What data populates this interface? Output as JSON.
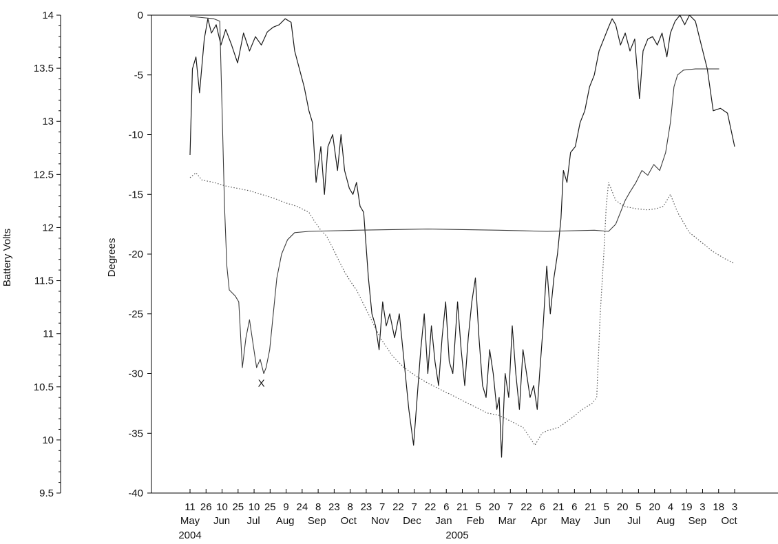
{
  "chart_data": {
    "type": "line",
    "xlabel": "",
    "ylabel": "Degrees",
    "ylim": [
      -40,
      0
    ],
    "y_ticks": [
      0,
      -5,
      -10,
      -15,
      -20,
      -25,
      -30,
      -35,
      -40
    ],
    "secondary_axis": {
      "ylabel": "Battery Volts",
      "ylim": [
        9.5,
        14
      ],
      "ticks": [
        "14",
        "13.5",
        "13",
        "12.5",
        "12",
        "11.5",
        "11",
        "10.5",
        "10",
        "9.5"
      ]
    },
    "x_days_labels": [
      "11",
      "26",
      "10",
      "25",
      "10",
      "25",
      "9",
      "24",
      "8",
      "23",
      "8",
      "23",
      "7",
      "22",
      "7",
      "22",
      "6",
      "21",
      "5",
      "20",
      "7",
      "22",
      "6",
      "21",
      "6",
      "21",
      "5",
      "20",
      "5",
      "20",
      "4",
      "19",
      "3",
      "18",
      "3"
    ],
    "x_month_labels": [
      "May",
      "Jun",
      "Jul",
      "Aug",
      "Sep",
      "Oct",
      "Nov",
      "Dec",
      "Jan",
      "Feb",
      "Mar",
      "Apr",
      "May",
      "Jun",
      "Jul",
      "Aug",
      "Sep",
      "Oct"
    ],
    "x_year_labels": [
      "2004",
      "2005"
    ],
    "annotation": "X",
    "grid": false,
    "series": [
      {
        "style": "solid-thick",
        "values": [
          [
            0,
            -11.7
          ],
          [
            2,
            -4.5
          ],
          [
            5,
            -3.5
          ],
          [
            8,
            -6.5
          ],
          [
            12,
            -2
          ],
          [
            15,
            -0.3
          ],
          [
            18,
            -1.5
          ],
          [
            22,
            -0.8
          ],
          [
            26,
            -2.5
          ],
          [
            30,
            -1.2
          ],
          [
            35,
            -2.5
          ],
          [
            40,
            -4
          ],
          [
            45,
            -1.5
          ],
          [
            50,
            -3
          ],
          [
            55,
            -1.8
          ],
          [
            60,
            -2.5
          ],
          [
            65,
            -1.4
          ],
          [
            70,
            -1
          ],
          [
            75,
            -0.8
          ],
          [
            80,
            -0.3
          ],
          [
            85,
            -0.6
          ],
          [
            88,
            -3
          ],
          [
            92,
            -4.5
          ],
          [
            96,
            -6
          ],
          [
            100,
            -8
          ],
          [
            103,
            -9
          ],
          [
            106,
            -14
          ],
          [
            110,
            -11
          ],
          [
            113,
            -15
          ],
          [
            116,
            -11
          ],
          [
            120,
            -10
          ],
          [
            124,
            -13
          ],
          [
            127,
            -10
          ],
          [
            130,
            -13
          ],
          [
            134,
            -14.5
          ],
          [
            137,
            -15
          ],
          [
            140,
            -14
          ],
          [
            143,
            -16
          ],
          [
            146,
            -16.5
          ],
          [
            150,
            -22
          ],
          [
            153,
            -25
          ],
          [
            156,
            -26
          ],
          [
            159,
            -28
          ],
          [
            162,
            -24
          ],
          [
            165,
            -26
          ],
          [
            168,
            -25
          ],
          [
            172,
            -27
          ],
          [
            176,
            -25
          ],
          [
            180,
            -29
          ],
          [
            184,
            -33
          ],
          [
            188,
            -36
          ],
          [
            191,
            -32
          ],
          [
            194,
            -28
          ],
          [
            197,
            -25
          ],
          [
            200,
            -30
          ],
          [
            203,
            -26
          ],
          [
            206,
            -29
          ],
          [
            209,
            -31
          ],
          [
            212,
            -27
          ],
          [
            215,
            -24
          ],
          [
            218,
            -29
          ],
          [
            221,
            -30
          ],
          [
            225,
            -24
          ],
          [
            228,
            -28
          ],
          [
            231,
            -31
          ],
          [
            234,
            -27
          ],
          [
            237,
            -24
          ],
          [
            240,
            -22
          ],
          [
            243,
            -27
          ],
          [
            246,
            -31
          ],
          [
            249,
            -32
          ],
          [
            252,
            -28
          ],
          [
            255,
            -30
          ],
          [
            258,
            -33
          ],
          [
            260,
            -32
          ],
          [
            262,
            -37
          ],
          [
            265,
            -30
          ],
          [
            268,
            -32
          ],
          [
            271,
            -26
          ],
          [
            274,
            -30
          ],
          [
            277,
            -33
          ],
          [
            280,
            -28
          ],
          [
            283,
            -30
          ],
          [
            286,
            -32
          ],
          [
            289,
            -31
          ],
          [
            292,
            -33
          ],
          [
            294,
            -30
          ],
          [
            297,
            -26
          ],
          [
            300,
            -21
          ],
          [
            303,
            -25
          ],
          [
            306,
            -22
          ],
          [
            309,
            -20
          ],
          [
            312,
            -17
          ],
          [
            314,
            -13
          ],
          [
            317,
            -14
          ],
          [
            320,
            -11.5
          ],
          [
            324,
            -11
          ],
          [
            328,
            -9
          ],
          [
            332,
            -8
          ],
          [
            336,
            -6
          ],
          [
            340,
            -5
          ],
          [
            344,
            -3
          ],
          [
            348,
            -2
          ],
          [
            352,
            -1
          ],
          [
            355,
            -0.3
          ],
          [
            358,
            -0.8
          ],
          [
            362,
            -2.5
          ],
          [
            366,
            -1.5
          ],
          [
            370,
            -3
          ],
          [
            374,
            -2
          ],
          [
            378,
            -7
          ],
          [
            381,
            -3
          ],
          [
            385,
            -2
          ],
          [
            389,
            -1.8
          ],
          [
            393,
            -2.5
          ],
          [
            397,
            -1.5
          ],
          [
            401,
            -3.5
          ],
          [
            404,
            -1.5
          ],
          [
            408,
            -0.5
          ],
          [
            412,
            0
          ],
          [
            416,
            -0.8
          ],
          [
            420,
            0
          ],
          [
            425,
            -0.5
          ],
          [
            430,
            -2.5
          ],
          [
            435,
            -4.5
          ],
          [
            440,
            -8
          ],
          [
            446,
            -7.8
          ],
          [
            452,
            -8.2
          ],
          [
            458,
            -11
          ]
        ]
      },
      {
        "style": "solid-thin",
        "values": [
          [
            0,
            -0.1
          ],
          [
            10,
            -0.2
          ],
          [
            20,
            -0.3
          ],
          [
            25,
            -0.5
          ],
          [
            27,
            -8
          ],
          [
            29,
            -16
          ],
          [
            31,
            -21
          ],
          [
            33,
            -23
          ],
          [
            38,
            -23.5
          ],
          [
            41,
            -24
          ],
          [
            44,
            -29.5
          ],
          [
            47,
            -27
          ],
          [
            50,
            -25.5
          ],
          [
            53,
            -27.5
          ],
          [
            56,
            -29.5
          ],
          [
            59,
            -28.8
          ],
          [
            62,
            -30
          ],
          [
            64,
            -29.5
          ],
          [
            67,
            -28
          ],
          [
            70,
            -25
          ],
          [
            73,
            -22
          ],
          [
            77,
            -20
          ],
          [
            82,
            -18.8
          ],
          [
            88,
            -18.2
          ],
          [
            100,
            -18.1
          ],
          [
            140,
            -18
          ],
          [
            200,
            -17.9
          ],
          [
            260,
            -18
          ],
          [
            300,
            -18.1
          ],
          [
            340,
            -18
          ],
          [
            352,
            -18.1
          ],
          [
            358,
            -17.5
          ],
          [
            362,
            -16.5
          ],
          [
            366,
            -15.5
          ],
          [
            370,
            -14.8
          ],
          [
            375,
            -14
          ],
          [
            380,
            -13
          ],
          [
            385,
            -13.4
          ],
          [
            390,
            -12.5
          ],
          [
            395,
            -13
          ],
          [
            400,
            -11.5
          ],
          [
            404,
            -9
          ],
          [
            407,
            -6
          ],
          [
            410,
            -5
          ],
          [
            415,
            -4.6
          ],
          [
            425,
            -4.5
          ],
          [
            445,
            -4.5
          ]
        ]
      },
      {
        "style": "dotted",
        "values": [
          [
            0,
            -13.6
          ],
          [
            5,
            -13.2
          ],
          [
            10,
            -13.8
          ],
          [
            20,
            -14
          ],
          [
            30,
            -14.3
          ],
          [
            40,
            -14.5
          ],
          [
            50,
            -14.7
          ],
          [
            60,
            -15
          ],
          [
            70,
            -15.3
          ],
          [
            80,
            -15.7
          ],
          [
            90,
            -16
          ],
          [
            100,
            -16.5
          ],
          [
            105,
            -17.3
          ],
          [
            110,
            -18
          ],
          [
            115,
            -18.5
          ],
          [
            120,
            -19.5
          ],
          [
            125,
            -20.5
          ],
          [
            130,
            -21.5
          ],
          [
            135,
            -22.3
          ],
          [
            140,
            -23
          ],
          [
            145,
            -24
          ],
          [
            150,
            -25
          ],
          [
            160,
            -27
          ],
          [
            170,
            -28.5
          ],
          [
            180,
            -29.5
          ],
          [
            190,
            -30.2
          ],
          [
            200,
            -30.8
          ],
          [
            210,
            -31.3
          ],
          [
            220,
            -31.8
          ],
          [
            230,
            -32.3
          ],
          [
            240,
            -32.8
          ],
          [
            250,
            -33.3
          ],
          [
            260,
            -33.5
          ],
          [
            270,
            -34
          ],
          [
            280,
            -34.5
          ],
          [
            290,
            -36
          ],
          [
            296,
            -35
          ],
          [
            300,
            -34.8
          ],
          [
            310,
            -34.5
          ],
          [
            320,
            -33.8
          ],
          [
            330,
            -33
          ],
          [
            338,
            -32.5
          ],
          [
            342,
            -32
          ],
          [
            345,
            -25
          ],
          [
            348,
            -20
          ],
          [
            350,
            -16
          ],
          [
            352,
            -14
          ],
          [
            358,
            -15.5
          ],
          [
            365,
            -16
          ],
          [
            375,
            -16.2
          ],
          [
            385,
            -16.3
          ],
          [
            392,
            -16.2
          ],
          [
            398,
            -16
          ],
          [
            404,
            -15
          ],
          [
            410,
            -16.5
          ],
          [
            420,
            -18.2
          ],
          [
            430,
            -19
          ],
          [
            440,
            -19.8
          ],
          [
            450,
            -20.4
          ],
          [
            458,
            -20.8
          ]
        ]
      }
    ]
  }
}
